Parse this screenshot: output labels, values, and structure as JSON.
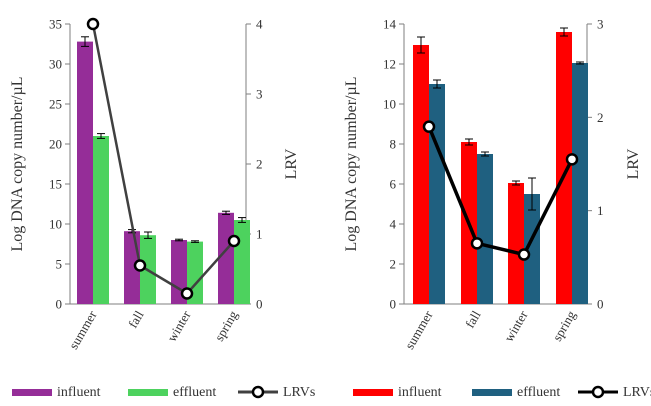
{
  "chart_data": [
    {
      "type": "bar",
      "categories": [
        "summer",
        "fall",
        "winter",
        "spring"
      ],
      "series": [
        {
          "name": "influent",
          "values": [
            32.8,
            9.1,
            8.0,
            11.4
          ],
          "errors": [
            0.6,
            0.2,
            0.1,
            0.2
          ],
          "color": "#952d98"
        },
        {
          "name": "effluent",
          "values": [
            21.0,
            8.6,
            7.8,
            10.5
          ],
          "errors": [
            0.3,
            0.4,
            0.1,
            0.3
          ],
          "color": "#4dd25e"
        }
      ],
      "line_series": {
        "name": "LRVs",
        "values": [
          4.0,
          0.55,
          0.15,
          0.9
        ],
        "color": "#404040",
        "axis": "right"
      },
      "ylabel": "Log DNA copy number/µL",
      "ylim": [
        0,
        35
      ],
      "yticks": [
        "0",
        "5",
        "10",
        "15",
        "20",
        "25",
        "30",
        "35"
      ],
      "y2label": "LRV",
      "y2lim": [
        0,
        4
      ],
      "y2ticks": [
        "0",
        "1",
        "2",
        "3",
        "4"
      ],
      "legend_position": "bottom",
      "grid": false
    },
    {
      "type": "bar",
      "categories": [
        "summer",
        "fall",
        "winter",
        "spring"
      ],
      "series": [
        {
          "name": "influent",
          "values": [
            12.95,
            8.1,
            6.05,
            13.6
          ],
          "errors": [
            0.4,
            0.15,
            0.1,
            0.2
          ],
          "color": "#ff0000"
        },
        {
          "name": "effluent",
          "values": [
            11.0,
            7.5,
            5.5,
            12.05
          ],
          "errors": [
            0.2,
            0.1,
            0.8,
            0.05
          ],
          "color": "#1f6080"
        }
      ],
      "line_series": {
        "name": "LRVs",
        "values": [
          1.9,
          0.65,
          0.53,
          1.55
        ],
        "color": "#000000",
        "axis": "right"
      },
      "ylabel": "Log DNA copy number/µL",
      "ylim": [
        0,
        14
      ],
      "yticks": [
        "0",
        "2",
        "4",
        "6",
        "8",
        "10",
        "12",
        "14"
      ],
      "y2label": "LRV",
      "y2lim": [
        0,
        3
      ],
      "y2ticks": [
        "0",
        "1",
        "2",
        "3"
      ],
      "legend_position": "bottom",
      "grid": false
    }
  ]
}
